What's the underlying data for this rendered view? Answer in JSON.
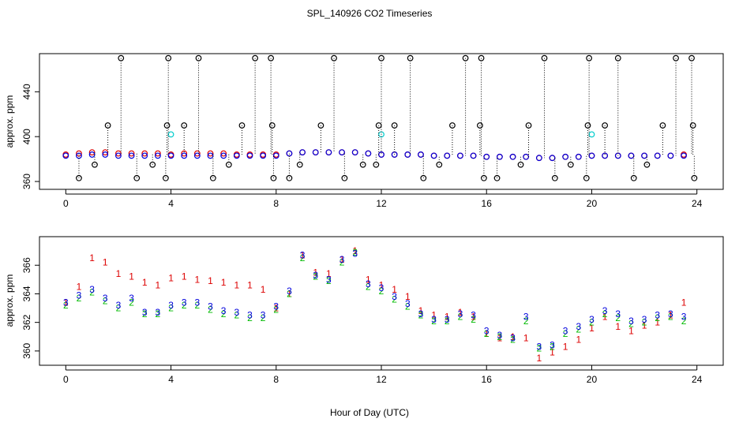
{
  "chart_data": [
    {
      "type": "scatter",
      "title": "SPL_140926  CO2 Timeseries",
      "ylabel": "approx. ppm",
      "xlim": [
        -1,
        25
      ],
      "xticks": [
        0,
        4,
        8,
        12,
        16,
        20,
        24
      ],
      "ylim": [
        353,
        474
      ],
      "yticks": [
        360,
        400,
        440
      ],
      "x": [
        0,
        0.5,
        1,
        1.5,
        2,
        2.5,
        3,
        3.5,
        4,
        4.5,
        5,
        5.5,
        6,
        6.5,
        7,
        7.5,
        8,
        8.5,
        9,
        9.5,
        10,
        10.5,
        11,
        11.5,
        12,
        12.5,
        13,
        13.5,
        14,
        14.5,
        15,
        15.5,
        16,
        16.5,
        17,
        17.5,
        18,
        18.5,
        19,
        19.5,
        20,
        20.5,
        21,
        21.5,
        22,
        22.5,
        23,
        23.5
      ],
      "series": [
        {
          "color": "#dd0000",
          "marker": "circle",
          "values": [
            384,
            385,
            386,
            386,
            385,
            385,
            385,
            385,
            384,
            385,
            385,
            385,
            385,
            384,
            384,
            384,
            384,
            385,
            386,
            386,
            386,
            386,
            386,
            385,
            384,
            384,
            384,
            384,
            383,
            383,
            383,
            383,
            382,
            382,
            382,
            382,
            381,
            381,
            382,
            382,
            383,
            383,
            383,
            383,
            383,
            383,
            383,
            384
          ]
        },
        {
          "color": "#0000dd",
          "marker": "circle",
          "values": [
            383,
            383,
            384,
            384,
            383,
            383,
            383,
            383,
            383,
            383,
            383,
            383,
            383,
            383,
            383,
            383,
            383,
            385,
            386,
            386,
            386,
            386,
            386,
            385,
            384,
            384,
            384,
            384,
            383,
            383,
            383,
            383,
            382,
            382,
            382,
            382,
            381,
            381,
            382,
            382,
            383,
            383,
            383,
            383,
            383,
            383,
            383,
            383
          ]
        },
        {
          "color": "#00cccc",
          "marker": "circle",
          "x": [
            4,
            12,
            20
          ],
          "values": [
            402,
            402,
            402
          ]
        },
        {
          "color": "#000000",
          "marker": "circle",
          "dropline": true,
          "x": [
            2.1,
            3.9,
            5.05,
            7.2,
            7.8,
            10.2,
            12,
            13.1,
            15.2,
            15.8,
            18.2,
            19.9,
            21,
            23.2,
            23.8,
            1.6,
            3.85,
            4.5,
            6.7,
            7.85,
            9.7,
            11.9,
            12.5,
            14.7,
            15.75,
            17.6,
            19.85,
            20.5,
            22.7,
            23.85,
            0.5,
            2.7,
            3.8,
            5.6,
            7.9,
            8.5,
            10.6,
            13.6,
            15.9,
            16.4,
            18.6,
            19.8,
            21.6,
            23.9,
            1.1,
            3.3,
            6.2,
            8.9,
            11.3,
            11.8,
            14.2,
            17.3,
            19.2,
            22.1
          ],
          "values": [
            470,
            470,
            470,
            470,
            470,
            470,
            470,
            470,
            470,
            470,
            470,
            470,
            470,
            470,
            470,
            410,
            410,
            410,
            410,
            410,
            410,
            410,
            410,
            410,
            410,
            410,
            410,
            410,
            410,
            410,
            363,
            363,
            363,
            363,
            363,
            363,
            363,
            363,
            363,
            363,
            363,
            363,
            363,
            363,
            375,
            375,
            375,
            375,
            375,
            375,
            375,
            375,
            375,
            375
          ]
        }
      ]
    },
    {
      "type": "scatter",
      "xlabel": "Hour of Day (UTC)",
      "ylabel": "approx. ppm",
      "xlim": [
        -1,
        25
      ],
      "xticks": [
        0,
        4,
        8,
        12,
        16,
        20,
        24
      ],
      "ylim": [
        359,
        368
      ],
      "yticks": [
        360,
        362,
        364,
        366
      ],
      "x": [
        0,
        0.5,
        1,
        1.5,
        2,
        2.5,
        3,
        3.5,
        4,
        4.5,
        5,
        5.5,
        6,
        6.5,
        7,
        7.5,
        8,
        8.5,
        9,
        9.5,
        10,
        10.5,
        11,
        11.5,
        12,
        12.5,
        13,
        13.5,
        14,
        14.5,
        15,
        15.5,
        16,
        16.5,
        17,
        17.5,
        18,
        18.5,
        19,
        19.5,
        20,
        20.5,
        21,
        21.5,
        22,
        22.5,
        23,
        23.5
      ],
      "series": [
        {
          "color": "#dd0000",
          "marker": "1",
          "values": [
            363.4,
            364.5,
            366.5,
            366.2,
            365.4,
            365.2,
            364.8,
            364.6,
            365.1,
            365.2,
            365.0,
            364.9,
            364.8,
            364.6,
            364.6,
            364.3,
            363.0,
            364.0,
            366.7,
            365.5,
            365.4,
            366.4,
            367.0,
            365.0,
            364.6,
            364.3,
            363.8,
            362.8,
            362.5,
            362.4,
            362.7,
            362.4,
            361.2,
            360.9,
            361.0,
            360.9,
            359.5,
            359.9,
            360.3,
            360.8,
            361.6,
            362.4,
            361.7,
            361.4,
            361.8,
            362.0,
            362.5,
            363.4
          ]
        },
        {
          "color": "#00bb00",
          "marker": "2",
          "values": [
            363.2,
            363.7,
            364.1,
            363.5,
            363.0,
            363.4,
            362.6,
            362.6,
            363.0,
            363.2,
            363.2,
            362.9,
            362.6,
            362.5,
            362.3,
            362.3,
            362.9,
            364.0,
            366.5,
            365.2,
            364.9,
            366.2,
            366.9,
            364.5,
            364.2,
            363.6,
            363.1,
            362.5,
            362.1,
            362.1,
            362.4,
            362.2,
            361.2,
            361.0,
            360.8,
            362.1,
            360.2,
            360.3,
            361.2,
            361.5,
            362.0,
            362.6,
            362.3,
            361.9,
            362.0,
            362.3,
            362.4,
            362.1
          ]
        },
        {
          "color": "#0000dd",
          "marker": "3",
          "values": [
            363.4,
            363.9,
            364.3,
            363.7,
            363.2,
            363.7,
            362.7,
            362.7,
            363.2,
            363.4,
            363.4,
            363.1,
            362.8,
            362.7,
            362.5,
            362.5,
            363.1,
            364.2,
            366.7,
            365.3,
            365.0,
            366.4,
            366.8,
            364.7,
            364.4,
            363.8,
            363.3,
            362.6,
            362.2,
            362.2,
            362.6,
            362.5,
            361.4,
            361.1,
            360.9,
            362.4,
            360.3,
            360.4,
            361.4,
            361.7,
            362.2,
            362.8,
            362.6,
            362.1,
            362.2,
            362.5,
            362.6,
            362.4
          ]
        }
      ]
    }
  ]
}
